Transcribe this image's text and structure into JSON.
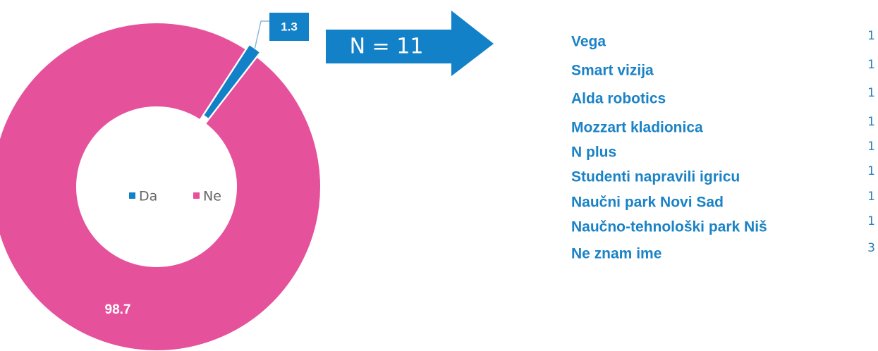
{
  "chart_data": {
    "type": "donut",
    "categories": [
      "Da",
      "Ne"
    ],
    "values": [
      1.3,
      98.7
    ],
    "colors": [
      "#1381c8",
      "#e6519c"
    ],
    "legend": "center"
  },
  "arrow_label": "N = 11",
  "list": {
    "items": [
      {
        "name": "Vega",
        "count": "1"
      },
      {
        "name": "Smart vizija",
        "count": "1"
      },
      {
        "name": "Alda robotics",
        "count": "1"
      },
      {
        "name": "Mozzart kladionica",
        "count": "1"
      },
      {
        "name": "N plus",
        "count": "1"
      },
      {
        "name": "Studenti napravili igricu",
        "count": "1"
      },
      {
        "name": "Naučni park Novi Sad",
        "count": "1"
      },
      {
        "name": "Naučno-tehnološki park Niš",
        "count": "1"
      },
      {
        "name": "Ne znam ime",
        "count": "3"
      }
    ]
  }
}
